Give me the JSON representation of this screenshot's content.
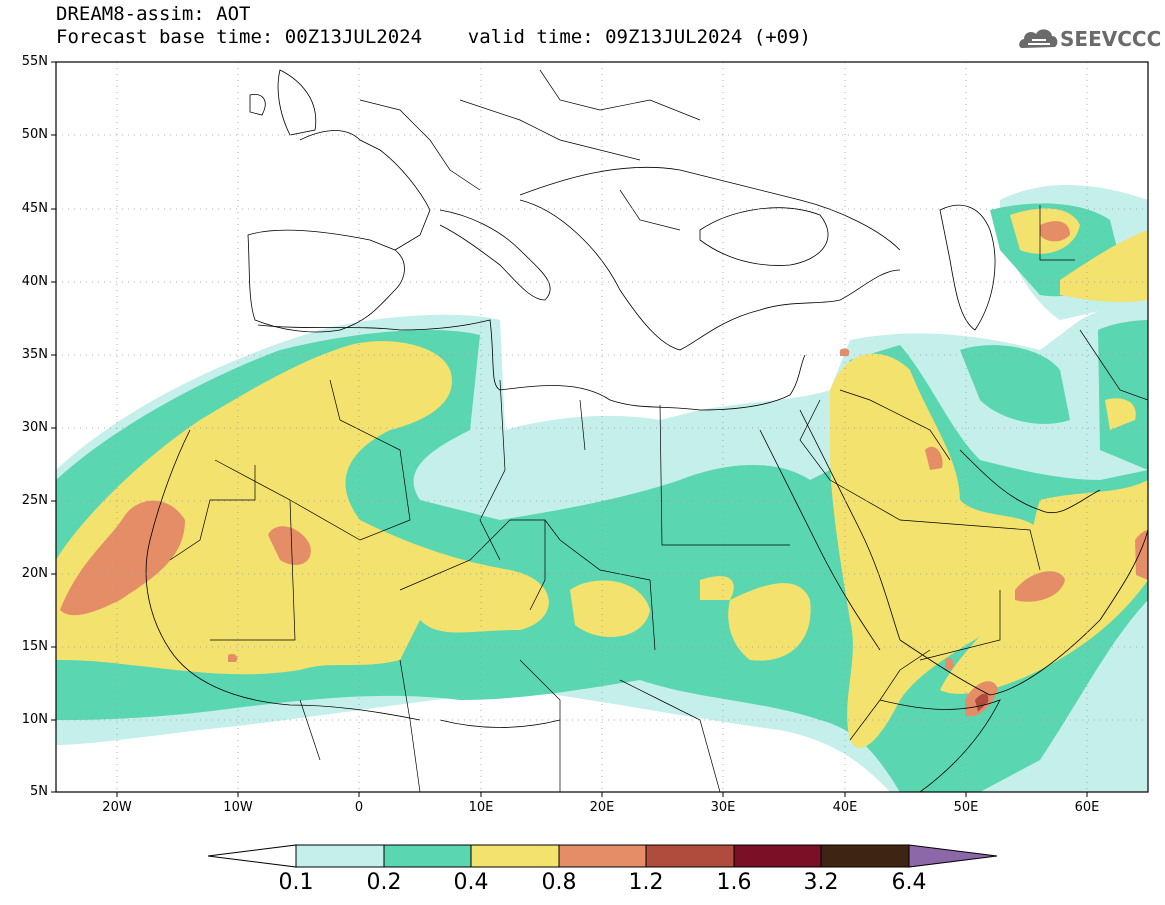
{
  "header": {
    "line1": "DREAM8-assim: AOT",
    "line2": "Forecast base time: 00Z13JUL2024    valid time: 09Z13JUL2024 (+09)"
  },
  "logo": {
    "text": "SEEVCCC"
  },
  "axes": {
    "lat_labels": [
      "55N",
      "50N",
      "45N",
      "40N",
      "35N",
      "30N",
      "25N",
      "20N",
      "15N",
      "10N",
      "5N"
    ],
    "lon_labels": [
      "20W",
      "10W",
      "0",
      "10E",
      "20E",
      "30E",
      "40E",
      "50E",
      "60E"
    ]
  },
  "colorbar": {
    "labels": [
      "0.1",
      "0.2",
      "0.4",
      "0.8",
      "1.2",
      "1.6",
      "3.2",
      "6.4"
    ],
    "colors": [
      "#c5efea",
      "#5ad6b0",
      "#f3e26e",
      "#e58d67",
      "#b04c3d",
      "#7a0f26",
      "#3e2412",
      "#8c68a8"
    ]
  }
}
